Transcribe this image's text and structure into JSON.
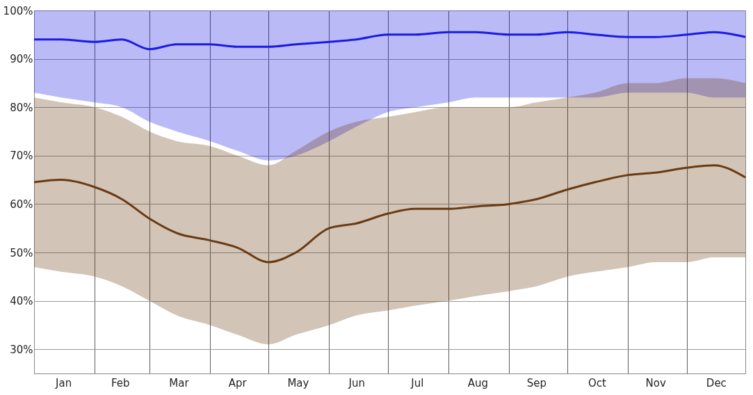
{
  "chart_data": {
    "type": "line",
    "x": [
      "--01-01",
      "--01-15",
      "--02-01",
      "--02-15",
      "--03-01",
      "--03-15",
      "--04-01",
      "--04-15",
      "--05-01",
      "--05-15",
      "--06-01",
      "--06-15",
      "--07-01",
      "--07-15",
      "--08-01",
      "--08-15",
      "--09-01",
      "--09-15",
      "--10-01",
      "--10-15",
      "--11-01",
      "--11-15",
      "--12-01",
      "--12-15",
      "--12-31"
    ],
    "series": [
      {
        "color": "#1a1ae6",
        "values": [
          94,
          94,
          93.5,
          94,
          92,
          93,
          93,
          92.5,
          92.5,
          93,
          93.5,
          94,
          95,
          95,
          95.5,
          95.5,
          95,
          95,
          95.5,
          95,
          94.5,
          94.5,
          95,
          95.5,
          94.5
        ],
        "lower": [
          83,
          82,
          81,
          80,
          77,
          75,
          73,
          71,
          69,
          70,
          73,
          76,
          79,
          80,
          81,
          82,
          82,
          82,
          82,
          82,
          83,
          83,
          83,
          82,
          82
        ],
        "upper": [
          100,
          100,
          100,
          100,
          100,
          100,
          100,
          100,
          100,
          100,
          100,
          100,
          100,
          100,
          100,
          100,
          100,
          100,
          100,
          100,
          100,
          100,
          100,
          100,
          100
        ]
      },
      {
        "color": "#6b3a10",
        "values": [
          64.5,
          65,
          63.5,
          61,
          57,
          54,
          52.5,
          51,
          48,
          50,
          55,
          56,
          58,
          59,
          59,
          59.5,
          60,
          61,
          63,
          64.5,
          66,
          66.5,
          67.5,
          68,
          65.5
        ],
        "lower": [
          47,
          46,
          45,
          43,
          40,
          37,
          35,
          33,
          31,
          33,
          35,
          37,
          38,
          39,
          40,
          41,
          42,
          43,
          45,
          46,
          47,
          48,
          48,
          49,
          49
        ],
        "upper": [
          82,
          81,
          80,
          78,
          75,
          73,
          72,
          70,
          68,
          71,
          75,
          77,
          78,
          79,
          80,
          80,
          80,
          81,
          82,
          83,
          85,
          85,
          86,
          86,
          85
        ]
      }
    ],
    "xlim": [
      "--01-01",
      "--12-31"
    ],
    "xticks": [
      {
        "value": "--01-01",
        "label": null
      },
      {
        "value": "--01-16",
        "label": "Jan"
      },
      {
        "value": "--02-01",
        "label": null
      },
      {
        "value": "--02-14",
        "label": "Feb"
      },
      {
        "value": "--03-01",
        "label": null
      },
      {
        "value": "--03-16",
        "label": "Mar"
      },
      {
        "value": "--04-01",
        "label": null
      },
      {
        "value": "--04-15",
        "label": "Apr"
      },
      {
        "value": "--05-01",
        "label": null
      },
      {
        "value": "--05-16",
        "label": "May"
      },
      {
        "value": "--06-01",
        "label": null
      },
      {
        "value": "--06-15",
        "label": "Jun"
      },
      {
        "value": "--07-01",
        "label": null
      },
      {
        "value": "--07-16",
        "label": "Jul"
      },
      {
        "value": "--08-01",
        "label": null
      },
      {
        "value": "--08-16",
        "label": "Aug"
      },
      {
        "value": "--09-01",
        "label": null
      },
      {
        "value": "--09-15",
        "label": "Sep"
      },
      {
        "value": "--10-01",
        "label": null
      },
      {
        "value": "--10-16",
        "label": "Oct"
      },
      {
        "value": "--11-01",
        "label": null
      },
      {
        "value": "--11-15",
        "label": "Nov"
      },
      {
        "value": "--12-01",
        "label": null
      },
      {
        "value": "--12-16",
        "label": "Dec"
      }
    ],
    "ylim": [
      25,
      100
    ],
    "yticks": [
      {
        "value": 30,
        "label": "30%"
      },
      {
        "value": 40,
        "label": "40%"
      },
      {
        "value": 50,
        "label": "50%"
      },
      {
        "value": 60,
        "label": "60%"
      },
      {
        "value": 70,
        "label": "70%"
      },
      {
        "value": 80,
        "label": "80%"
      },
      {
        "value": 90,
        "label": "90%"
      },
      {
        "value": 100,
        "label": "100%"
      }
    ],
    "grid": true,
    "line_style": "solid",
    "marker": "none"
  }
}
